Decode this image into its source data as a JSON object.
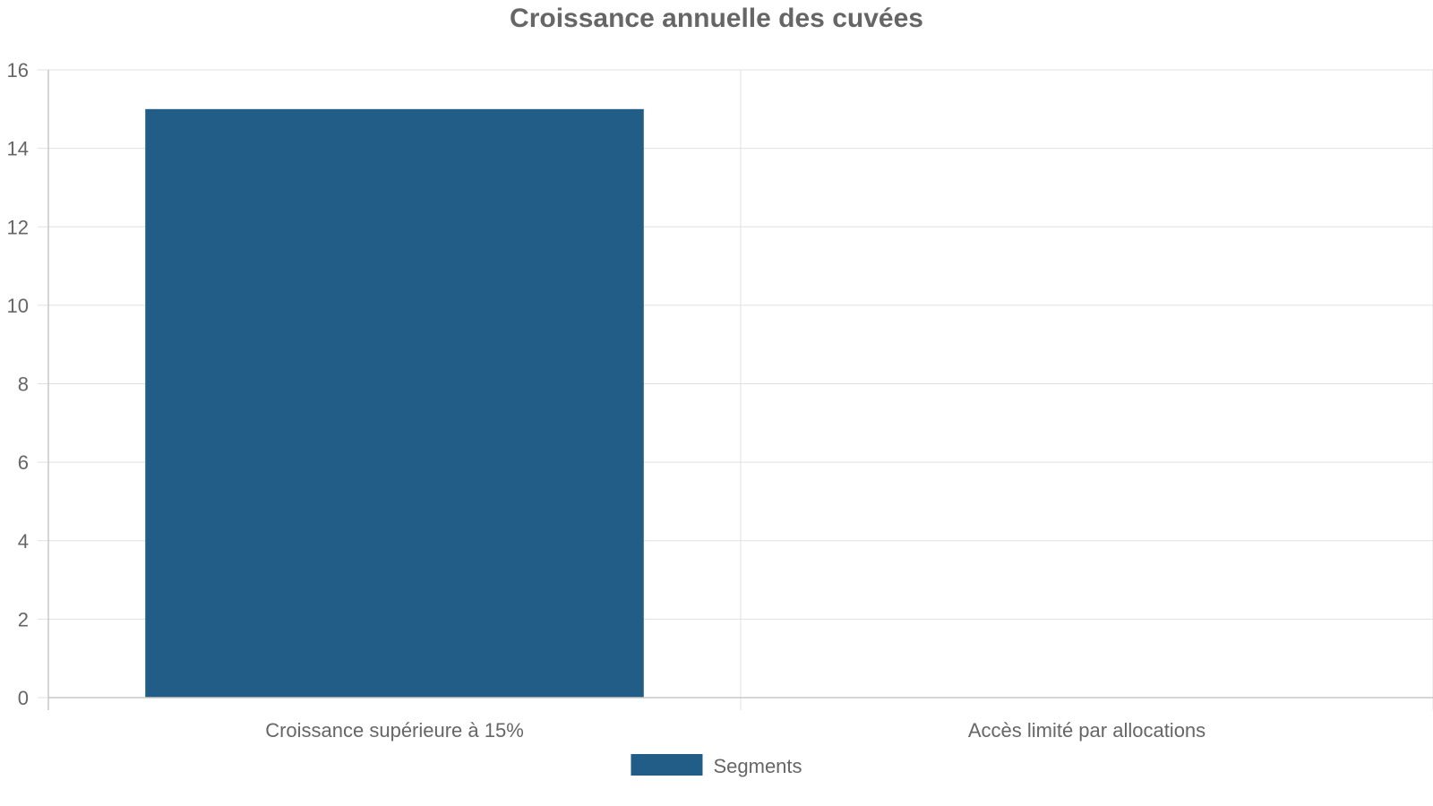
{
  "chart_data": {
    "type": "bar",
    "title": "Croissance annuelle des cuvées",
    "categories": [
      "Croissance supérieure à 15%",
      "Accès limité par allocations"
    ],
    "series": [
      {
        "name": "Segments",
        "values": [
          15,
          0
        ],
        "color": "#215d87"
      }
    ],
    "ylim": [
      0,
      16
    ],
    "yticks": [
      0,
      2,
      4,
      6,
      8,
      10,
      12,
      14,
      16
    ],
    "grid": true,
    "legend_position": "bottom"
  }
}
